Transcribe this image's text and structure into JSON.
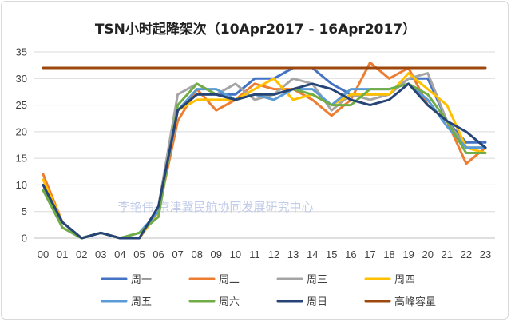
{
  "chart_data": {
    "type": "line",
    "title": "TSN小时起降架次（10Apr2017 - 16Apr2017）",
    "xlabel": "",
    "ylabel": "",
    "x": [
      "00",
      "01",
      "02",
      "03",
      "04",
      "05",
      "06",
      "07",
      "08",
      "09",
      "10",
      "11",
      "12",
      "13",
      "14",
      "15",
      "16",
      "17",
      "18",
      "19",
      "20",
      "21",
      "22",
      "23"
    ],
    "ylim": [
      0,
      35
    ],
    "yticks": [
      0,
      5,
      10,
      15,
      20,
      25,
      30,
      35
    ],
    "grid": true,
    "legend": "bottom",
    "watermark": "李艳伟-京津冀民航协同发展研究中心",
    "series": [
      {
        "name": "周一",
        "color": "#4472c4",
        "values": [
          9,
          3,
          0,
          1,
          0,
          0,
          5,
          24,
          27,
          27,
          27,
          30,
          30,
          32,
          32,
          29,
          27,
          27,
          27,
          30,
          30,
          22,
          18,
          18
        ]
      },
      {
        "name": "周二",
        "color": "#ed7d31",
        "values": [
          12,
          3,
          0,
          1,
          0,
          0,
          5,
          22,
          28,
          24,
          26,
          29,
          28,
          28,
          26,
          23,
          26,
          33,
          30,
          32,
          25,
          22,
          14,
          17
        ]
      },
      {
        "name": "周三",
        "color": "#a5a5a5",
        "values": [
          10,
          2,
          0,
          1,
          0,
          0,
          6,
          27,
          29,
          27,
          29,
          26,
          27,
          30,
          29,
          24,
          27,
          26,
          27,
          30,
          31,
          22,
          17,
          17
        ]
      },
      {
        "name": "周四",
        "color": "#ffc000",
        "values": [
          11,
          3,
          0,
          1,
          0,
          0,
          5,
          24,
          26,
          26,
          26,
          28,
          30,
          26,
          27,
          25,
          27,
          27,
          27,
          31,
          28,
          25,
          17,
          16
        ]
      },
      {
        "name": "周五",
        "color": "#5b9bd5",
        "values": [
          9,
          3,
          0,
          1,
          0,
          1,
          5,
          24,
          28,
          28,
          26,
          27,
          26,
          28,
          28,
          25,
          28,
          28,
          28,
          29,
          26,
          21,
          17,
          17
        ]
      },
      {
        "name": "周六",
        "color": "#70ad47",
        "values": [
          9,
          2,
          0,
          1,
          0,
          1,
          4,
          25,
          29,
          27,
          26,
          27,
          27,
          28,
          27,
          25,
          25,
          28,
          28,
          29,
          27,
          22,
          16,
          16
        ]
      },
      {
        "name": "周日",
        "color": "#264478",
        "values": [
          10,
          3,
          0,
          1,
          0,
          0,
          6,
          24,
          27,
          27,
          26,
          27,
          27,
          28,
          29,
          28,
          26,
          25,
          26,
          29,
          25,
          22,
          20,
          17
        ]
      },
      {
        "name": "高峰容量",
        "color": "#9e480e",
        "values": [
          32,
          32,
          32,
          32,
          32,
          32,
          32,
          32,
          32,
          32,
          32,
          32,
          32,
          32,
          32,
          32,
          32,
          32,
          32,
          32,
          32,
          32,
          32,
          32
        ]
      }
    ]
  }
}
